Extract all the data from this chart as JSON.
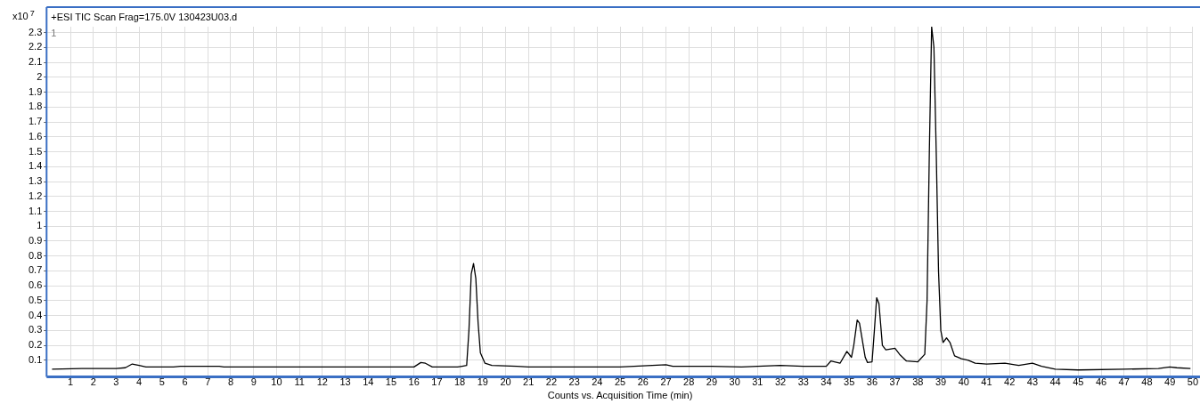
{
  "chart_data": {
    "type": "line",
    "title": "+ESI TIC Scan Frag=175.0V 130423U03.d",
    "xlabel": "Counts vs. Acquisition Time (min)",
    "ylabel": "x10$^{7}$",
    "annotations": [
      "1"
    ],
    "series": [
      {
        "color": "#000000",
        "x": [
          0.2,
          1.5,
          3.0,
          3.4,
          3.7,
          4.0,
          4.3,
          5.5,
          5.8,
          7.5,
          7.7,
          10,
          15,
          16.0,
          16.3,
          16.5,
          16.8,
          17.9,
          18.1,
          18.3,
          18.4,
          18.5,
          18.6,
          18.7,
          18.8,
          18.9,
          19.1,
          19.4,
          20.5,
          21,
          25,
          27.0,
          27.3,
          27.8,
          29,
          30.3,
          31,
          32,
          33,
          34.0,
          34.2,
          34.6,
          34.9,
          35.1,
          35.2,
          35.35,
          35.45,
          35.7,
          35.8,
          36.0,
          36.1,
          36.2,
          36.3,
          36.45,
          36.6,
          37.0,
          37.2,
          37.5,
          38.0,
          38.3,
          38.4,
          38.5,
          38.6,
          38.7,
          38.8,
          38.9,
          39.0,
          39.1,
          39.25,
          39.4,
          39.6,
          39.9,
          40.2,
          40.5,
          41,
          41.8,
          42.4,
          43.0,
          43.4,
          44,
          45,
          47,
          48.5,
          49.0,
          49.3,
          49.9
        ],
        "values": [
          0.04,
          0.045,
          0.045,
          0.05,
          0.075,
          0.065,
          0.055,
          0.055,
          0.06,
          0.06,
          0.055,
          0.055,
          0.055,
          0.055,
          0.085,
          0.08,
          0.055,
          0.055,
          0.06,
          0.065,
          0.3,
          0.68,
          0.75,
          0.65,
          0.35,
          0.15,
          0.08,
          0.065,
          0.06,
          0.055,
          0.055,
          0.07,
          0.06,
          0.06,
          0.06,
          0.055,
          0.06,
          0.065,
          0.06,
          0.06,
          0.095,
          0.08,
          0.16,
          0.12,
          0.2,
          0.37,
          0.35,
          0.12,
          0.085,
          0.09,
          0.3,
          0.52,
          0.48,
          0.2,
          0.17,
          0.18,
          0.14,
          0.095,
          0.09,
          0.14,
          0.5,
          1.5,
          2.34,
          2.2,
          1.5,
          0.7,
          0.3,
          0.22,
          0.25,
          0.22,
          0.13,
          0.11,
          0.1,
          0.08,
          0.075,
          0.08,
          0.065,
          0.08,
          0.06,
          0.04,
          0.035,
          0.04,
          0.045,
          0.055,
          0.05,
          0.045
        ]
      }
    ],
    "xlim": [
      0,
      50
    ],
    "xticks": [
      1,
      2,
      3,
      4,
      5,
      6,
      7,
      8,
      9,
      10,
      11,
      12,
      13,
      14,
      15,
      16,
      17,
      18,
      19,
      20,
      21,
      22,
      23,
      24,
      25,
      26,
      27,
      28,
      29,
      30,
      31,
      32,
      33,
      34,
      35,
      36,
      37,
      38,
      39,
      40,
      41,
      42,
      43,
      44,
      45,
      46,
      47,
      48,
      49,
      50
    ],
    "ylim": [
      0,
      2.34
    ],
    "yticks": [
      0.1,
      0.2,
      0.3,
      0.4,
      0.5,
      0.6,
      0.7,
      0.8,
      0.9,
      1,
      1.1,
      1.2,
      1.3,
      1.4,
      1.5,
      1.6,
      1.7,
      1.8,
      1.9,
      2,
      2.1,
      2.2,
      2.3
    ],
    "grid": true,
    "legend": false
  }
}
